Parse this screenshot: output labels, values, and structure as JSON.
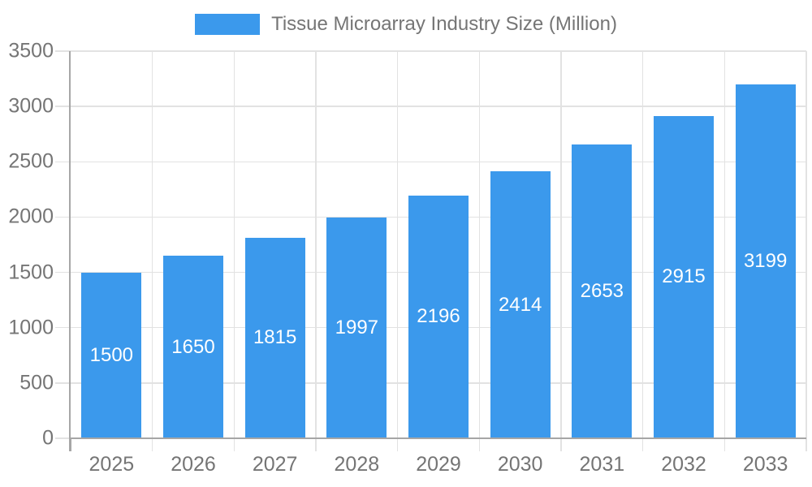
{
  "chart_data": {
    "type": "bar",
    "title": "Tissue Microarray Industry Size (Million)",
    "categories": [
      "2025",
      "2026",
      "2027",
      "2028",
      "2029",
      "2030",
      "2031",
      "2032",
      "2033"
    ],
    "values": [
      1500,
      1650,
      1815,
      1997,
      2196,
      2414,
      2653,
      2915,
      3199
    ],
    "series": [
      {
        "name": "Tissue Microarray Industry Size (Million)",
        "values": [
          1500,
          1650,
          1815,
          1997,
          2196,
          2414,
          2653,
          2915,
          3199
        ]
      }
    ],
    "xlabel": "",
    "ylabel": "",
    "ylim": [
      0,
      3500
    ],
    "yticks": [
      0,
      500,
      1000,
      1500,
      2000,
      2500,
      3000,
      3500
    ],
    "grid": true,
    "legend_position": "top-center",
    "value_label_position": "inside-center",
    "colors": {
      "bar": "#3B99EC",
      "bar_label": "#FFFFFF",
      "axis_text": "#757575",
      "title_text": "#757575",
      "gridline": "#E2E2E2",
      "axis_line": "#A6A6A6",
      "background": "#FFFFFF"
    }
  }
}
